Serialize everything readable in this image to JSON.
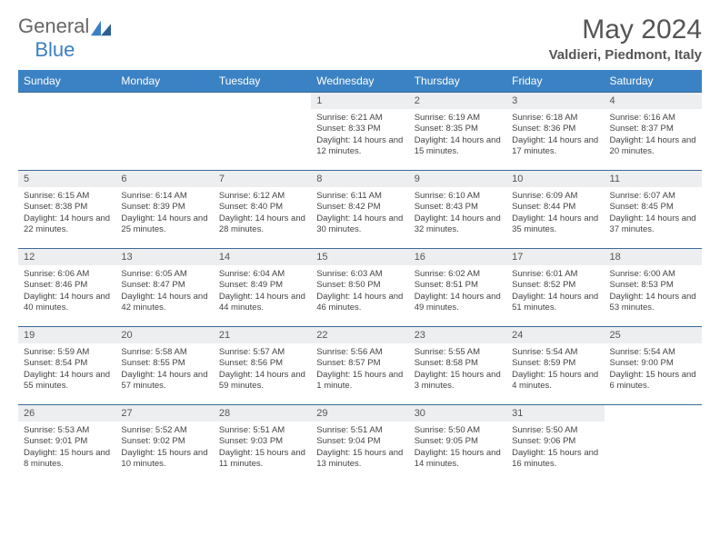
{
  "logo": {
    "part1": "General",
    "part2": "Blue"
  },
  "title": "May 2024",
  "location": "Valdieri, Piedmont, Italy",
  "header_row": {
    "bg": "#3b82c4",
    "fg": "#ffffff",
    "days": [
      "Sunday",
      "Monday",
      "Tuesday",
      "Wednesday",
      "Thursday",
      "Friday",
      "Saturday"
    ]
  },
  "daynum_row_bg": "#eceef0",
  "cell_border_color": "#3b6a9a",
  "weeks": [
    [
      null,
      null,
      null,
      {
        "n": "1",
        "sr": "6:21 AM",
        "ss": "8:33 PM",
        "dl": "14 hours and 12 minutes."
      },
      {
        "n": "2",
        "sr": "6:19 AM",
        "ss": "8:35 PM",
        "dl": "14 hours and 15 minutes."
      },
      {
        "n": "3",
        "sr": "6:18 AM",
        "ss": "8:36 PM",
        "dl": "14 hours and 17 minutes."
      },
      {
        "n": "4",
        "sr": "6:16 AM",
        "ss": "8:37 PM",
        "dl": "14 hours and 20 minutes."
      }
    ],
    [
      {
        "n": "5",
        "sr": "6:15 AM",
        "ss": "8:38 PM",
        "dl": "14 hours and 22 minutes."
      },
      {
        "n": "6",
        "sr": "6:14 AM",
        "ss": "8:39 PM",
        "dl": "14 hours and 25 minutes."
      },
      {
        "n": "7",
        "sr": "6:12 AM",
        "ss": "8:40 PM",
        "dl": "14 hours and 28 minutes."
      },
      {
        "n": "8",
        "sr": "6:11 AM",
        "ss": "8:42 PM",
        "dl": "14 hours and 30 minutes."
      },
      {
        "n": "9",
        "sr": "6:10 AM",
        "ss": "8:43 PM",
        "dl": "14 hours and 32 minutes."
      },
      {
        "n": "10",
        "sr": "6:09 AM",
        "ss": "8:44 PM",
        "dl": "14 hours and 35 minutes."
      },
      {
        "n": "11",
        "sr": "6:07 AM",
        "ss": "8:45 PM",
        "dl": "14 hours and 37 minutes."
      }
    ],
    [
      {
        "n": "12",
        "sr": "6:06 AM",
        "ss": "8:46 PM",
        "dl": "14 hours and 40 minutes."
      },
      {
        "n": "13",
        "sr": "6:05 AM",
        "ss": "8:47 PM",
        "dl": "14 hours and 42 minutes."
      },
      {
        "n": "14",
        "sr": "6:04 AM",
        "ss": "8:49 PM",
        "dl": "14 hours and 44 minutes."
      },
      {
        "n": "15",
        "sr": "6:03 AM",
        "ss": "8:50 PM",
        "dl": "14 hours and 46 minutes."
      },
      {
        "n": "16",
        "sr": "6:02 AM",
        "ss": "8:51 PM",
        "dl": "14 hours and 49 minutes."
      },
      {
        "n": "17",
        "sr": "6:01 AM",
        "ss": "8:52 PM",
        "dl": "14 hours and 51 minutes."
      },
      {
        "n": "18",
        "sr": "6:00 AM",
        "ss": "8:53 PM",
        "dl": "14 hours and 53 minutes."
      }
    ],
    [
      {
        "n": "19",
        "sr": "5:59 AM",
        "ss": "8:54 PM",
        "dl": "14 hours and 55 minutes."
      },
      {
        "n": "20",
        "sr": "5:58 AM",
        "ss": "8:55 PM",
        "dl": "14 hours and 57 minutes."
      },
      {
        "n": "21",
        "sr": "5:57 AM",
        "ss": "8:56 PM",
        "dl": "14 hours and 59 minutes."
      },
      {
        "n": "22",
        "sr": "5:56 AM",
        "ss": "8:57 PM",
        "dl": "15 hours and 1 minute."
      },
      {
        "n": "23",
        "sr": "5:55 AM",
        "ss": "8:58 PM",
        "dl": "15 hours and 3 minutes."
      },
      {
        "n": "24",
        "sr": "5:54 AM",
        "ss": "8:59 PM",
        "dl": "15 hours and 4 minutes."
      },
      {
        "n": "25",
        "sr": "5:54 AM",
        "ss": "9:00 PM",
        "dl": "15 hours and 6 minutes."
      }
    ],
    [
      {
        "n": "26",
        "sr": "5:53 AM",
        "ss": "9:01 PM",
        "dl": "15 hours and 8 minutes."
      },
      {
        "n": "27",
        "sr": "5:52 AM",
        "ss": "9:02 PM",
        "dl": "15 hours and 10 minutes."
      },
      {
        "n": "28",
        "sr": "5:51 AM",
        "ss": "9:03 PM",
        "dl": "15 hours and 11 minutes."
      },
      {
        "n": "29",
        "sr": "5:51 AM",
        "ss": "9:04 PM",
        "dl": "15 hours and 13 minutes."
      },
      {
        "n": "30",
        "sr": "5:50 AM",
        "ss": "9:05 PM",
        "dl": "15 hours and 14 minutes."
      },
      {
        "n": "31",
        "sr": "5:50 AM",
        "ss": "9:06 PM",
        "dl": "15 hours and 16 minutes."
      },
      null
    ]
  ],
  "labels": {
    "sunrise": "Sunrise: ",
    "sunset": "Sunset: ",
    "daylight": "Daylight: "
  }
}
